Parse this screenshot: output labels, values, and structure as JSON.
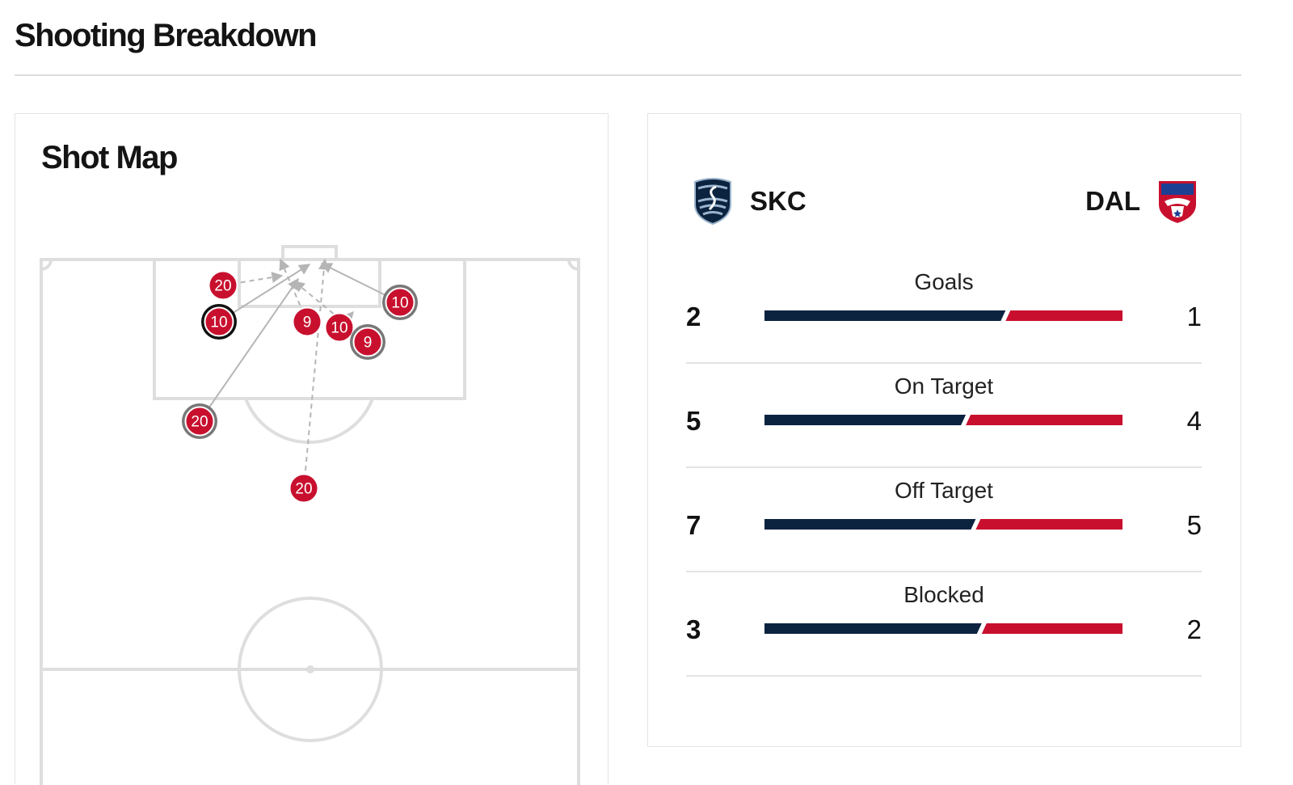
{
  "page_title": "Shooting Breakdown",
  "shot_map": {
    "title": "Shot Map",
    "colors": {
      "shot": "#c8102e",
      "line": "#b5b5b5",
      "pitch_line": "#dedede"
    },
    "shots": [
      {
        "number": "20",
        "outcome": "off-target"
      },
      {
        "number": "10",
        "outcome": "goal"
      },
      {
        "number": "9",
        "outcome": "off-target"
      },
      {
        "number": "10",
        "outcome": "off-target"
      },
      {
        "number": "9",
        "outcome": "on-target"
      },
      {
        "number": "10",
        "outcome": "on-target"
      },
      {
        "number": "20",
        "outcome": "on-target"
      },
      {
        "number": "20",
        "outcome": "off-target"
      }
    ]
  },
  "teams": {
    "home": {
      "abbr": "SKC",
      "color": "#0c2340",
      "crest_icon": "sporting-kc-crest-icon"
    },
    "away": {
      "abbr": "DAL",
      "color": "#c8102e",
      "crest_icon": "fc-dallas-crest-icon"
    }
  },
  "stats": [
    {
      "label": "Goals",
      "home": "2",
      "away": "1"
    },
    {
      "label": "On Target",
      "home": "5",
      "away": "4"
    },
    {
      "label": "Off Target",
      "home": "7",
      "away": "5"
    },
    {
      "label": "Blocked",
      "home": "3",
      "away": "2"
    }
  ]
}
